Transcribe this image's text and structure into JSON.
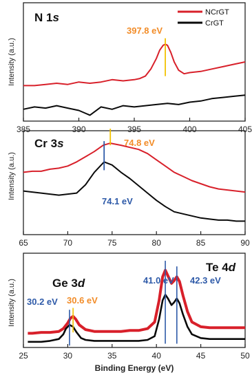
{
  "colors": {
    "ncrgt": "#d8202a",
    "crgt": "#0a0a0a",
    "orange_label": "#f28c28",
    "blue_label": "#2e5aa8",
    "marker_yellow": "#f2c200",
    "marker_blue": "#2e5aa8"
  },
  "chart_data": [
    {
      "type": "line",
      "title_main": "N 1",
      "title_sub": "s",
      "ylabel": "Intensity (a.u.)",
      "xlabel": "",
      "xlim": [
        385,
        405
      ],
      "xticks": [
        "385",
        "390",
        "395",
        "400",
        "405"
      ],
      "legend": {
        "placement": "top-right",
        "entries": [
          "NCrGT",
          "CrGT"
        ]
      },
      "series": [
        {
          "name": "NCrGT",
          "x": [
            385,
            386,
            387,
            388,
            389,
            390,
            391,
            392,
            393,
            394,
            395,
            395.5,
            396,
            396.5,
            397,
            397.3,
            397.6,
            397.8,
            398,
            398.3,
            398.6,
            399,
            399.5,
            400,
            401,
            402,
            403,
            404,
            405
          ],
          "y": [
            0.3,
            0.3,
            0.31,
            0.32,
            0.31,
            0.33,
            0.32,
            0.33,
            0.35,
            0.34,
            0.35,
            0.36,
            0.38,
            0.44,
            0.53,
            0.6,
            0.64,
            0.65,
            0.64,
            0.58,
            0.5,
            0.43,
            0.4,
            0.41,
            0.42,
            0.44,
            0.46,
            0.48,
            0.5
          ]
        },
        {
          "name": "CrGT",
          "x": [
            385,
            386,
            387,
            388,
            389,
            390,
            391,
            392,
            393,
            394,
            395,
            396,
            397,
            398,
            399,
            400,
            401,
            402,
            403,
            404,
            405
          ],
          "y": [
            0.1,
            0.12,
            0.11,
            0.13,
            0.11,
            0.09,
            0.05,
            0.12,
            0.1,
            0.13,
            0.12,
            0.13,
            0.14,
            0.15,
            0.14,
            0.16,
            0.17,
            0.19,
            0.2,
            0.21,
            0.22
          ]
        }
      ],
      "annotations": [
        {
          "label": "397.8 eV",
          "x": 397.8,
          "color": "orange"
        }
      ]
    },
    {
      "type": "line",
      "title_main": "Cr 3",
      "title_sub": "s",
      "ylabel": "Intensity (a.u.)",
      "xlabel": "",
      "xlim": [
        65,
        90
      ],
      "xticks": [
        "65",
        "70",
        "75",
        "80",
        "85",
        "90"
      ],
      "series": [
        {
          "name": "NCrGT",
          "x": [
            65,
            66,
            67,
            68,
            69,
            70,
            71,
            72,
            73,
            74,
            74.8,
            76,
            77,
            78,
            79,
            80,
            81,
            82,
            83,
            84,
            85,
            86,
            87,
            88,
            89,
            90
          ],
          "y": [
            0.6,
            0.61,
            0.61,
            0.63,
            0.64,
            0.66,
            0.7,
            0.75,
            0.8,
            0.86,
            0.88,
            0.86,
            0.84,
            0.82,
            0.78,
            0.72,
            0.66,
            0.6,
            0.56,
            0.52,
            0.49,
            0.46,
            0.44,
            0.43,
            0.42,
            0.41
          ]
        },
        {
          "name": "CrGT",
          "x": [
            65,
            66,
            67,
            68,
            69,
            70,
            71,
            72,
            73,
            74.1,
            75,
            76,
            77,
            78,
            79,
            80,
            81,
            82,
            83,
            84,
            85,
            86,
            87,
            88,
            89,
            90
          ],
          "y": [
            0.42,
            0.41,
            0.4,
            0.39,
            0.38,
            0.39,
            0.4,
            0.48,
            0.6,
            0.7,
            0.67,
            0.6,
            0.54,
            0.47,
            0.4,
            0.33,
            0.27,
            0.22,
            0.2,
            0.18,
            0.16,
            0.15,
            0.14,
            0.14,
            0.13,
            0.13
          ]
        }
      ],
      "annotations": [
        {
          "label": "74.8 eV",
          "x": 74.8,
          "color": "orange"
        },
        {
          "label": "74.1 eV",
          "x": 74.1,
          "color": "blue"
        }
      ]
    },
    {
      "type": "line",
      "title_main": "Te 4",
      "title_sub": "d",
      "title2_main": "Ge 3",
      "title2_sub": "d",
      "ylabel": "Intensity (a.u.)",
      "xlabel": "Binding Energy (eV)",
      "xlim": [
        25,
        50
      ],
      "xticks": [
        "25",
        "30",
        "35",
        "40",
        "45",
        "50"
      ],
      "series": [
        {
          "name": "NCrGT",
          "x": [
            25.5,
            26,
            27,
            28,
            29,
            29.5,
            30,
            30.3,
            30.6,
            30.9,
            31.3,
            32,
            33,
            34,
            35,
            36,
            37,
            38,
            39,
            39.8,
            40.3,
            40.7,
            41,
            41.3,
            41.7,
            42,
            42.3,
            42.6,
            43,
            43.5,
            44,
            45,
            46,
            47,
            48,
            49,
            50
          ],
          "y": [
            0.15,
            0.15,
            0.16,
            0.16,
            0.17,
            0.2,
            0.26,
            0.31,
            0.33,
            0.3,
            0.24,
            0.19,
            0.17,
            0.17,
            0.17,
            0.17,
            0.18,
            0.18,
            0.2,
            0.27,
            0.5,
            0.75,
            0.82,
            0.76,
            0.68,
            0.71,
            0.75,
            0.7,
            0.55,
            0.38,
            0.27,
            0.22,
            0.21,
            0.21,
            0.21,
            0.21,
            0.21
          ]
        },
        {
          "name": "CrGT",
          "x": [
            25.5,
            26,
            27,
            28,
            29,
            29.5,
            29.8,
            30.2,
            30.6,
            31,
            31.5,
            32,
            33,
            34,
            35,
            36,
            37,
            38,
            39,
            39.8,
            40.3,
            40.7,
            41,
            41.3,
            41.7,
            42,
            42.3,
            42.6,
            43,
            43.5,
            44,
            45,
            46,
            47,
            48,
            49,
            50
          ],
          "y": [
            0.06,
            0.06,
            0.06,
            0.07,
            0.09,
            0.14,
            0.2,
            0.24,
            0.22,
            0.16,
            0.1,
            0.08,
            0.07,
            0.07,
            0.07,
            0.07,
            0.07,
            0.07,
            0.08,
            0.12,
            0.3,
            0.5,
            0.56,
            0.52,
            0.45,
            0.48,
            0.52,
            0.47,
            0.35,
            0.22,
            0.14,
            0.1,
            0.09,
            0.09,
            0.09,
            0.09,
            0.09
          ]
        }
      ],
      "annotations": [
        {
          "label": "30.2 eV",
          "x": 30.2,
          "color": "blue"
        },
        {
          "label": "30.6 eV",
          "x": 30.6,
          "color": "orange"
        },
        {
          "label": "41.0 eV",
          "x": 41.0,
          "color": "blue"
        },
        {
          "label": "42.3 eV",
          "x": 42.3,
          "color": "blue"
        }
      ]
    }
  ]
}
